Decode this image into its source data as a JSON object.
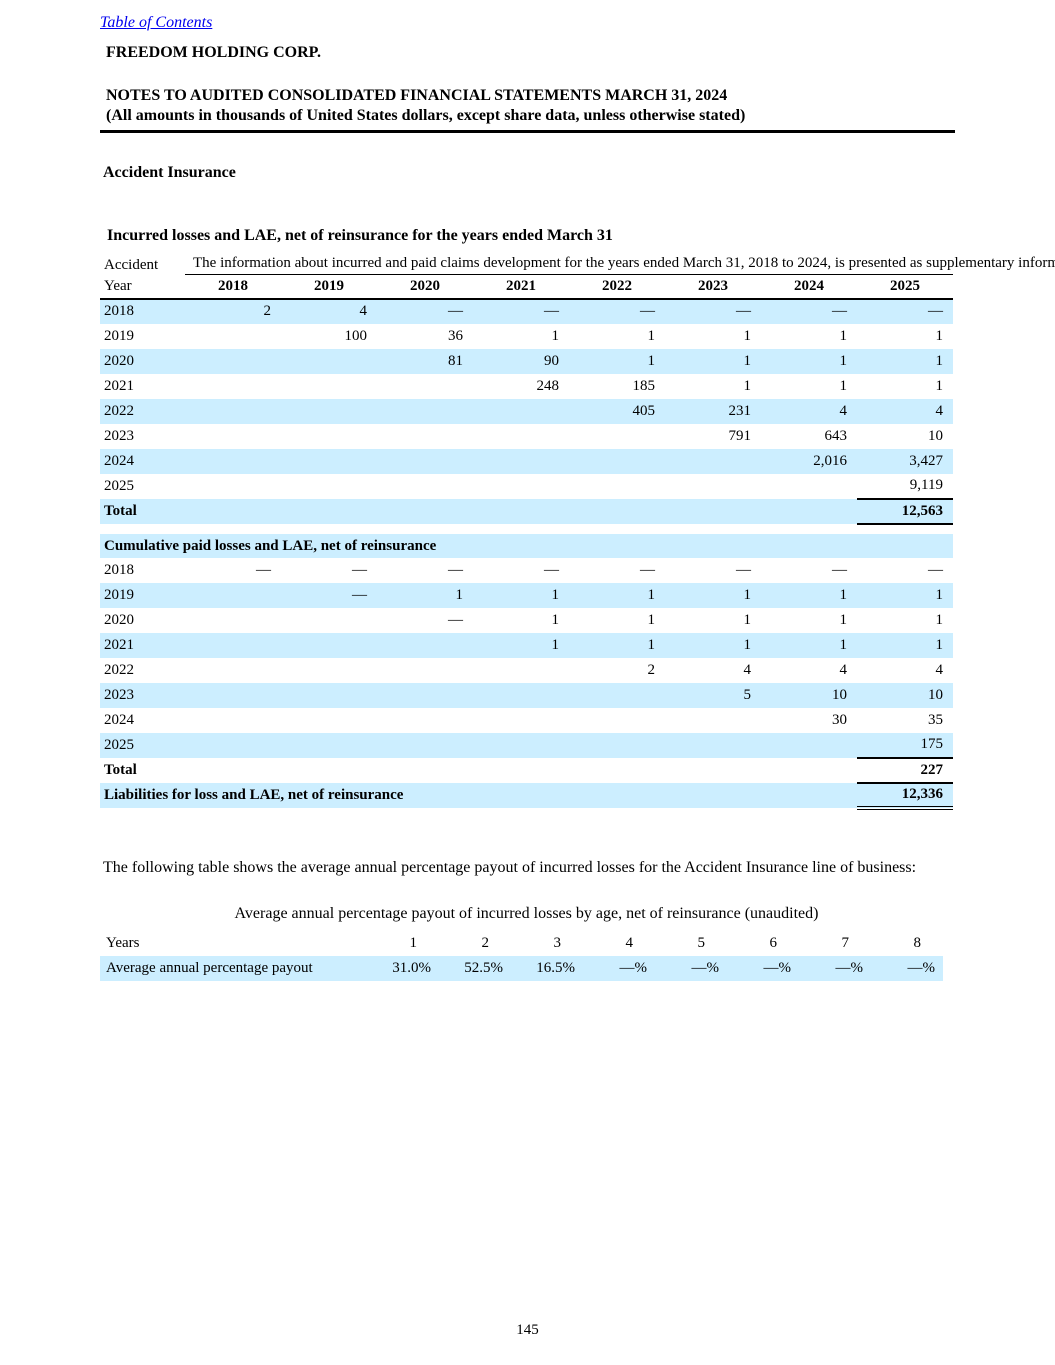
{
  "page": {
    "toc_link": "Table of Contents",
    "company_name": "FREEDOM HOLDING CORP.",
    "notes_title": "NOTES TO AUDITED CONSOLIDATED FINANCIAL STATEMENTS MARCH 31, 2024",
    "notes_subtitle": "(All amounts in thousands of United States dollars, except share data, unless otherwise stated)",
    "section_heading": "Accident Insurance",
    "page_number": "145"
  },
  "colors": {
    "row_shade": "#cceeff",
    "link_blue": "#0000ee",
    "text": "#000000"
  },
  "incurred_table": {
    "heading": "Incurred losses and LAE, net of reinsurance for the years ended March 31",
    "corner_label": "Accident",
    "note": "The information about incurred and paid claims development for the years ended March 31, 2018 to 2024, is presented as supplementary information.",
    "year_label": "Year",
    "columns": [
      "2018",
      "2019",
      "2020",
      "2021",
      "2022",
      "2023",
      "2024",
      "2025"
    ],
    "rows": [
      {
        "label": "2018",
        "cells": [
          "2",
          "4",
          "—",
          "—",
          "—",
          "—",
          "—",
          "—"
        ],
        "shaded": true
      },
      {
        "label": "2019",
        "cells": [
          "",
          "100",
          "36",
          "1",
          "1",
          "1",
          "1",
          "1"
        ]
      },
      {
        "label": "2020",
        "cells": [
          "",
          "",
          "81",
          "90",
          "1",
          "1",
          "1",
          "1"
        ],
        "shaded": true
      },
      {
        "label": "2021",
        "cells": [
          "",
          "",
          "",
          "248",
          "185",
          "1",
          "1",
          "1"
        ]
      },
      {
        "label": "2022",
        "cells": [
          "",
          "",
          "",
          "",
          "405",
          "231",
          "4",
          "4"
        ],
        "shaded": true
      },
      {
        "label": "2023",
        "cells": [
          "",
          "",
          "",
          "",
          "",
          "791",
          "643",
          "10"
        ]
      },
      {
        "label": "2024",
        "cells": [
          "",
          "",
          "",
          "",
          "",
          "",
          "2,016",
          "3,427"
        ],
        "shaded": true
      },
      {
        "label": "2025",
        "cells": [
          "",
          "",
          "",
          "",
          "",
          "",
          "",
          "9,119"
        ],
        "rule": "bottom"
      },
      {
        "label": "Total",
        "cells": [
          "",
          "",
          "",
          "",
          "",
          "",
          "",
          "12,563"
        ],
        "shaded": true,
        "bold": true,
        "rule": "bottom"
      }
    ]
  },
  "paid_table": {
    "heading": "Cumulative paid losses and LAE, net of reinsurance",
    "rows": [
      {
        "label": "2018",
        "cells": [
          "—",
          "—",
          "—",
          "—",
          "—",
          "—",
          "—",
          "—"
        ]
      },
      {
        "label": "2019",
        "cells": [
          "",
          "—",
          "1",
          "1",
          "1",
          "1",
          "1",
          "1"
        ],
        "shaded": true
      },
      {
        "label": "2020",
        "cells": [
          "",
          "",
          "—",
          "1",
          "1",
          "1",
          "1",
          "1"
        ]
      },
      {
        "label": "2021",
        "cells": [
          "",
          "",
          "",
          "1",
          "1",
          "1",
          "1",
          "1"
        ],
        "shaded": true
      },
      {
        "label": "2022",
        "cells": [
          "",
          "",
          "",
          "",
          "2",
          "4",
          "4",
          "4"
        ]
      },
      {
        "label": "2023",
        "cells": [
          "",
          "",
          "",
          "",
          "",
          "5",
          "10",
          "10"
        ],
        "shaded": true
      },
      {
        "label": "2024",
        "cells": [
          "",
          "",
          "",
          "",
          "",
          "",
          "30",
          "35"
        ]
      },
      {
        "label": "2025",
        "cells": [
          "",
          "",
          "",
          "",
          "",
          "",
          "",
          "175"
        ],
        "shaded": true,
        "rule": "bottom"
      },
      {
        "label": "Total",
        "cells": [
          "",
          "",
          "",
          "",
          "",
          "",
          "",
          "227"
        ],
        "bold": true,
        "rule": "bottom"
      },
      {
        "label": "Liabilities for loss and LAE, net of reinsurance",
        "cells": [
          "12,336"
        ],
        "shaded": true,
        "bold": true,
        "rule": "double",
        "wide": 8
      }
    ]
  },
  "payout_table": {
    "intro": "The following table shows the average annual percentage payout of incurred losses for the Accident Insurance line of business:",
    "title": "Average annual percentage payout of incurred losses by age, net of reinsurance (unaudited)",
    "rows": [
      {
        "label": "Years",
        "cells": [
          "1",
          "2",
          "3",
          "4",
          "5",
          "6",
          "7",
          "8"
        ],
        "hdr": true
      },
      {
        "label": "Average annual percentage payout",
        "cells": [
          "31.0%",
          "52.5%",
          "16.5%",
          "—%",
          "—%",
          "—%",
          "—%",
          "—%"
        ],
        "shaded": true
      }
    ]
  }
}
